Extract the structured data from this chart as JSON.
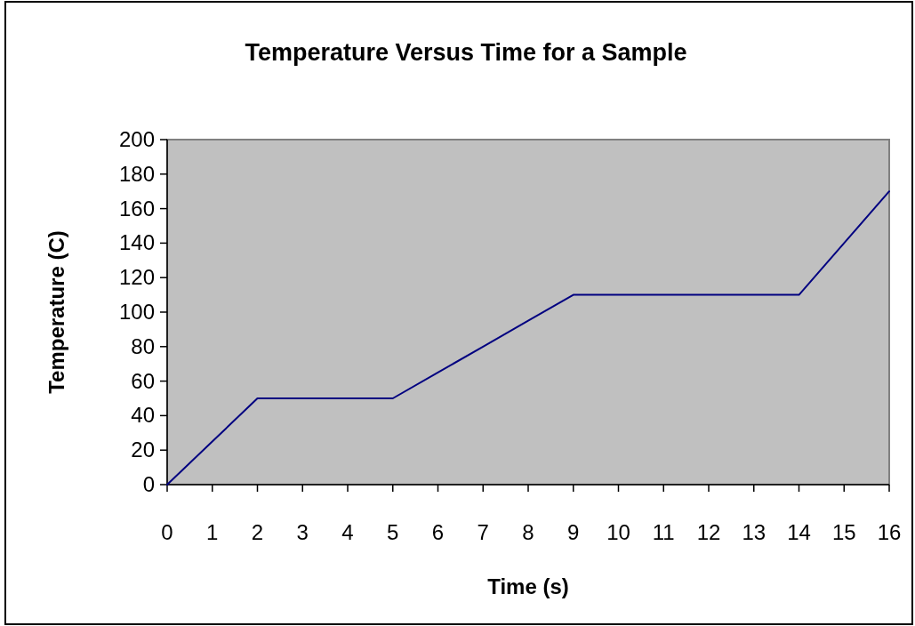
{
  "chart_data": {
    "type": "line",
    "title": "Temperature Versus Time for a Sample",
    "xlabel": "Time (s)",
    "ylabel": "Temperature (C)",
    "x": [
      0,
      1,
      2,
      3,
      4,
      5,
      6,
      7,
      8,
      9,
      10,
      11,
      12,
      13,
      14,
      15,
      16
    ],
    "series": [
      {
        "color": "#000080",
        "values": [
          0,
          25,
          50,
          50,
          50,
          50,
          65,
          80,
          95,
          110,
          110,
          110,
          110,
          110,
          110,
          140,
          170
        ]
      }
    ],
    "xlim": [
      0,
      16
    ],
    "xticks": [
      0,
      1,
      2,
      3,
      4,
      5,
      6,
      7,
      8,
      9,
      10,
      11,
      12,
      13,
      14,
      15,
      16
    ],
    "ylim": [
      0,
      200
    ],
    "yticks": [
      0,
      20,
      40,
      60,
      80,
      100,
      120,
      140,
      160,
      180,
      200
    ],
    "marker": "none",
    "line_style": "solid"
  }
}
